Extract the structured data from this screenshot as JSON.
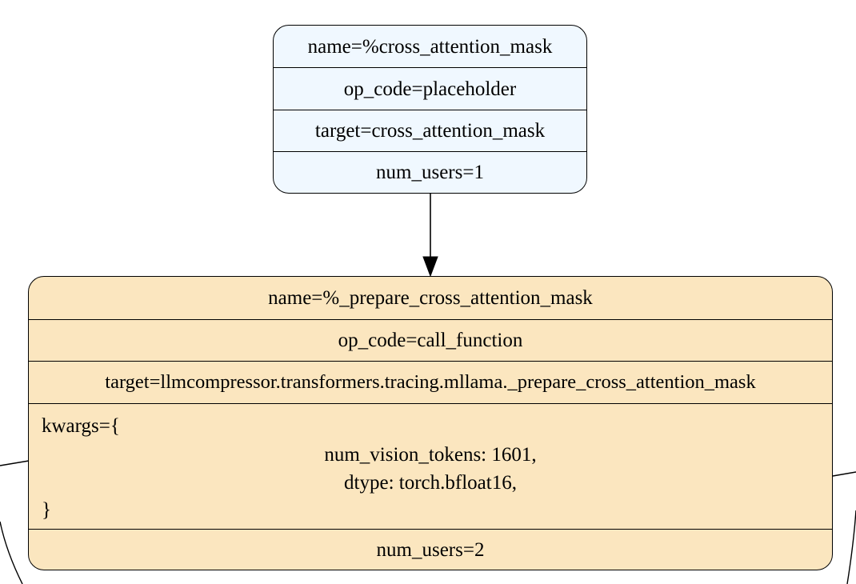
{
  "nodes": {
    "placeholder": {
      "name": "name=%cross_attention_mask",
      "op_code": "op_code=placeholder",
      "target": "target=cross_attention_mask",
      "num_users": "num_users=1",
      "fill_color": "#f0f8ff"
    },
    "call_function": {
      "name": "name=%_prepare_cross_attention_mask",
      "op_code": "op_code=call_function",
      "target": "target=llmcompressor.transformers.tracing.mllama._prepare_cross_attention_mask",
      "kwargs_open": "kwargs={",
      "kwargs_lines": [
        "num_vision_tokens: 1601,",
        "dtype: torch.bfloat16,"
      ],
      "kwargs_close": "}",
      "num_users": "num_users=2",
      "fill_color": "#fbe6bf"
    }
  },
  "edges": [
    {
      "from": "placeholder",
      "to": "call_function"
    }
  ],
  "edge_color": "#000000"
}
